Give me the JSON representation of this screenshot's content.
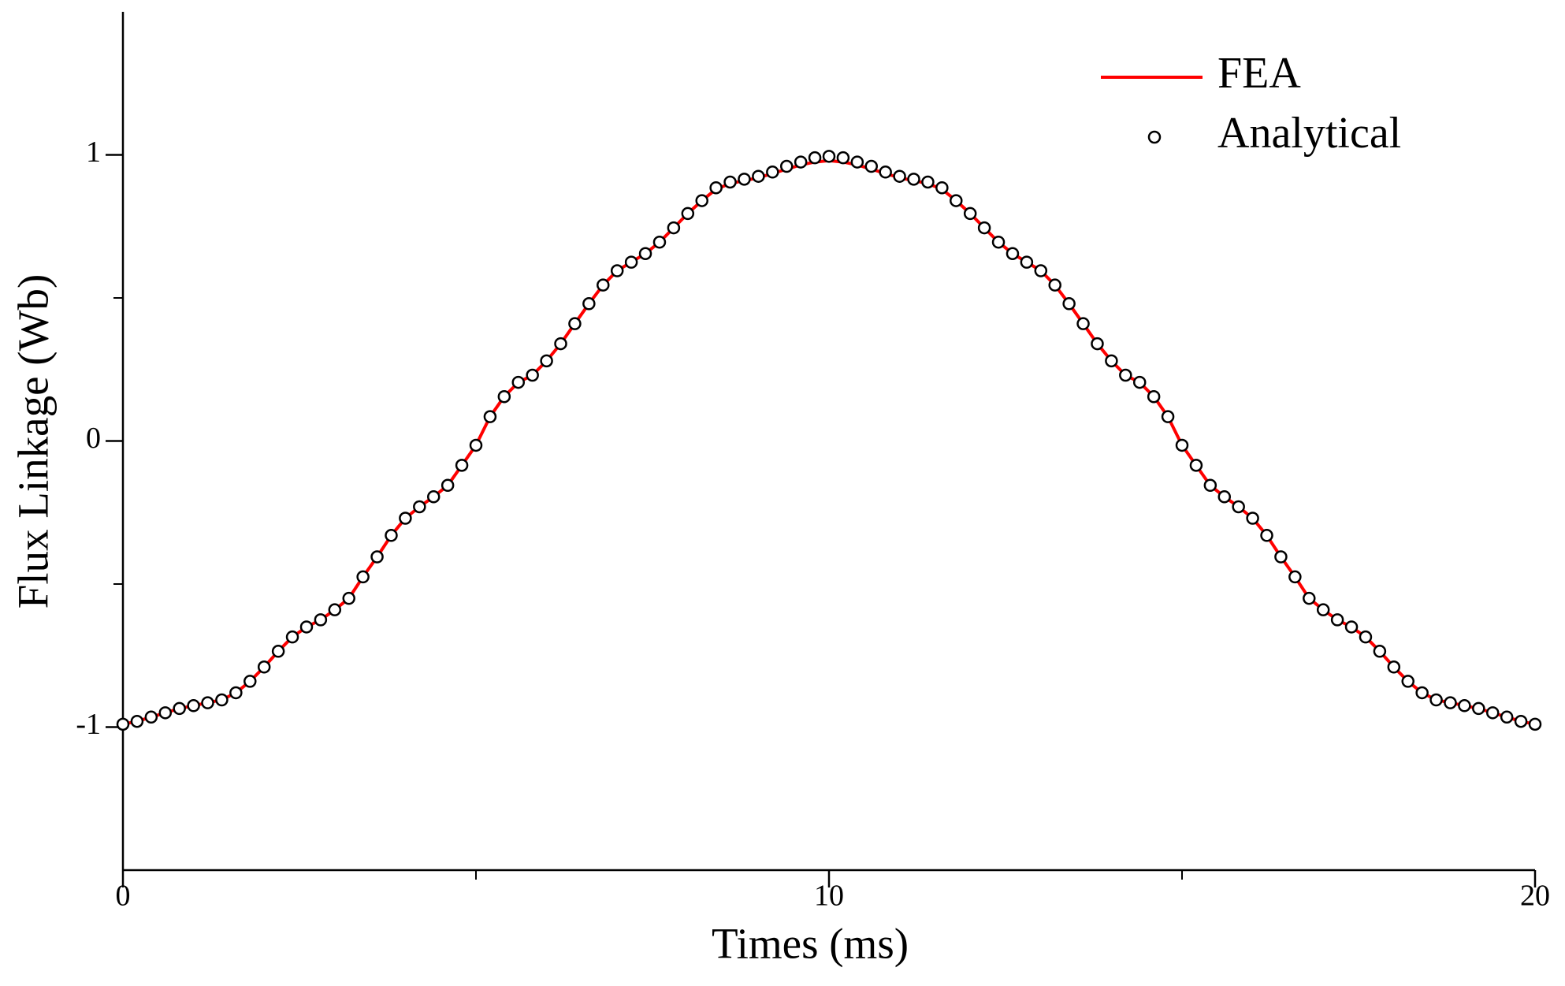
{
  "chart_data": {
    "type": "line",
    "xlabel": "Times (ms)",
    "ylabel": "Flux Linkage (Wb)",
    "x": [
      0,
      0.2,
      0.4,
      0.6,
      0.8,
      1,
      1.2,
      1.4,
      1.6,
      1.8,
      2,
      2.2,
      2.4,
      2.6,
      2.8,
      3,
      3.2,
      3.4,
      3.6,
      3.8,
      4,
      4.2,
      4.4,
      4.6,
      4.8,
      5,
      5.2,
      5.4,
      5.6,
      5.8,
      6,
      6.2,
      6.4,
      6.6,
      6.8,
      7,
      7.2,
      7.4,
      7.6,
      7.8,
      8,
      8.2,
      8.4,
      8.6,
      8.8,
      9,
      9.2,
      9.4,
      9.6,
      9.8,
      10,
      10.2,
      10.4,
      10.6,
      10.8,
      11,
      11.2,
      11.4,
      11.6,
      11.8,
      12,
      12.2,
      12.4,
      12.6,
      12.8,
      13,
      13.2,
      13.4,
      13.6,
      13.8,
      14,
      14.2,
      14.4,
      14.6,
      14.8,
      15,
      15.2,
      15.4,
      15.6,
      15.8,
      16,
      16.2,
      16.4,
      16.6,
      16.8,
      17,
      17.2,
      17.4,
      17.6,
      17.8,
      18,
      18.2,
      18.4,
      18.6,
      18.8,
      19,
      19.2,
      19.4,
      19.6,
      19.8,
      20
    ],
    "series": [
      {
        "name": "FEA",
        "color": "#ff0000",
        "style": "line",
        "values": [
          -0.99,
          -0.98,
          -0.965,
          -0.95,
          -0.935,
          -0.925,
          -0.915,
          -0.905,
          -0.88,
          -0.84,
          -0.79,
          -0.735,
          -0.685,
          -0.65,
          -0.625,
          -0.59,
          -0.55,
          -0.475,
          -0.405,
          -0.33,
          -0.27,
          -0.23,
          -0.195,
          -0.155,
          -0.085,
          -0.015,
          0.085,
          0.155,
          0.205,
          0.23,
          0.28,
          0.34,
          0.41,
          0.48,
          0.545,
          0.595,
          0.625,
          0.655,
          0.695,
          0.745,
          0.795,
          0.84,
          0.88,
          0.9,
          0.91,
          0.92,
          0.935,
          0.95,
          0.965,
          0.975,
          0.98,
          0.975,
          0.965,
          0.95,
          0.935,
          0.92,
          0.91,
          0.9,
          0.88,
          0.84,
          0.795,
          0.745,
          0.695,
          0.655,
          0.625,
          0.595,
          0.545,
          0.48,
          0.41,
          0.34,
          0.28,
          0.23,
          0.205,
          0.155,
          0.085,
          -0.015,
          -0.085,
          -0.155,
          -0.195,
          -0.23,
          -0.27,
          -0.33,
          -0.405,
          -0.475,
          -0.55,
          -0.59,
          -0.625,
          -0.65,
          -0.685,
          -0.735,
          -0.79,
          -0.84,
          -0.88,
          -0.905,
          -0.915,
          -0.925,
          -0.935,
          -0.95,
          -0.965,
          -0.98,
          -0.99
        ]
      },
      {
        "name": "Analytical",
        "color": "#000000",
        "style": "marker",
        "values": [
          -0.99,
          -0.98,
          -0.965,
          -0.95,
          -0.935,
          -0.925,
          -0.915,
          -0.905,
          -0.88,
          -0.84,
          -0.79,
          -0.735,
          -0.685,
          -0.65,
          -0.625,
          -0.59,
          -0.55,
          -0.475,
          -0.405,
          -0.33,
          -0.27,
          -0.23,
          -0.195,
          -0.155,
          -0.085,
          -0.015,
          0.085,
          0.155,
          0.205,
          0.23,
          0.28,
          0.34,
          0.41,
          0.48,
          0.545,
          0.595,
          0.625,
          0.655,
          0.695,
          0.745,
          0.795,
          0.84,
          0.885,
          0.905,
          0.915,
          0.925,
          0.94,
          0.96,
          0.975,
          0.99,
          0.995,
          0.99,
          0.975,
          0.96,
          0.94,
          0.925,
          0.915,
          0.905,
          0.885,
          0.84,
          0.795,
          0.745,
          0.695,
          0.655,
          0.625,
          0.595,
          0.545,
          0.48,
          0.41,
          0.34,
          0.28,
          0.23,
          0.205,
          0.155,
          0.085,
          -0.015,
          -0.085,
          -0.155,
          -0.195,
          -0.23,
          -0.27,
          -0.33,
          -0.405,
          -0.475,
          -0.55,
          -0.59,
          -0.625,
          -0.65,
          -0.685,
          -0.735,
          -0.79,
          -0.84,
          -0.88,
          -0.905,
          -0.915,
          -0.925,
          -0.935,
          -0.95,
          -0.965,
          -0.98,
          -0.99
        ]
      }
    ],
    "xlim": [
      0,
      20
    ],
    "xticks": [
      0,
      10,
      20
    ],
    "xminor": [
      5,
      15
    ],
    "ylim": [
      -1.5,
      1.5
    ],
    "yticks": [
      -1,
      0,
      1
    ],
    "yminor": [
      -0.5,
      0.5
    ],
    "grid": false,
    "legend": "upper right"
  }
}
